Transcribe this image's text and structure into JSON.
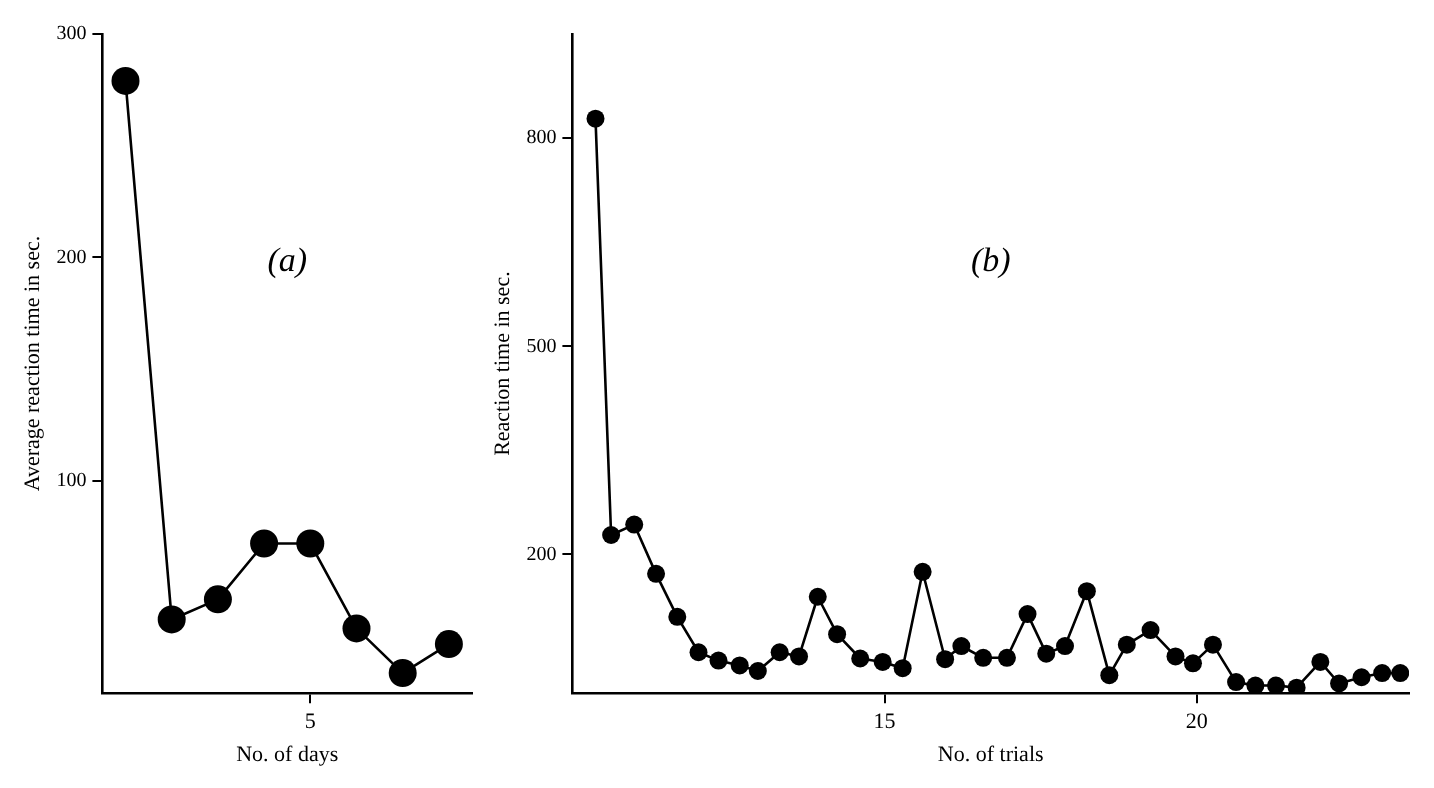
{
  "chart_data": [
    {
      "type": "line",
      "annotations": [
        "(a)"
      ],
      "xlabel": "No. of days",
      "ylabel": "Average reaction time in sec.",
      "categories": [
        null,
        null,
        null,
        null,
        "5",
        null,
        null,
        null
      ],
      "series": [
        {
          "color": "#000000",
          "values": [
            279,
            38,
            47,
            72,
            72,
            34,
            14,
            27
          ]
        }
      ],
      "ylim": [
        5,
        300
      ],
      "yticks": [
        100,
        200,
        300
      ],
      "marker": "circle",
      "line_style": "solid"
    },
    {
      "type": "line",
      "annotations": [
        "(b)"
      ],
      "xlabel": "No. of trials",
      "ylabel": "Reaction time in sec.",
      "x": [
        10.37,
        10.62,
        10.99,
        11.34,
        11.68,
        12.02,
        12.34,
        12.68,
        12.97,
        13.32,
        13.63,
        13.93,
        14.24,
        14.61,
        14.97,
        15.29,
        15.61,
        15.97,
        16.23,
        16.58,
        16.96,
        17.29,
        17.59,
        17.89,
        18.24,
        18.6,
        18.88,
        19.26,
        19.66,
        19.94,
        20.26,
        20.63,
        20.94,
        21.27,
        21.6,
        21.98,
        22.28,
        22.64,
        22.97,
        23.26
      ],
      "series": [
        {
          "color": "#000000",
          "values": [
            828,
            228,
            243,
            172,
            110,
            59,
            47,
            40,
            32,
            59,
            53,
            139,
            85,
            50,
            45,
            36,
            175,
            49,
            68,
            51,
            51,
            114,
            57,
            68,
            147,
            26,
            70,
            91,
            53,
            43,
            70,
            16,
            11,
            11,
            8,
            45,
            14,
            23,
            29,
            29
          ]
        }
      ],
      "xlim": [
        10,
        23.4
      ],
      "xticks": [
        15,
        20
      ],
      "ylim": [
        0,
        950
      ],
      "yticks": [
        200,
        500,
        800
      ],
      "marker": "circle",
      "line_style": "solid"
    }
  ]
}
